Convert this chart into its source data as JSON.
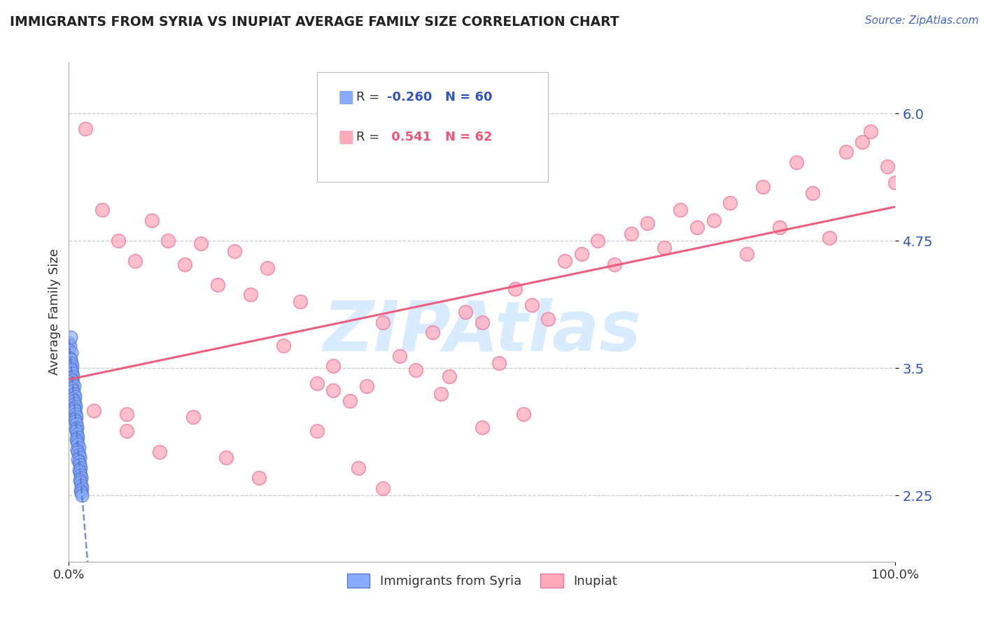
{
  "title": "IMMIGRANTS FROM SYRIA VS INUPIAT AVERAGE FAMILY SIZE CORRELATION CHART",
  "source_text": "Source: ZipAtlas.com",
  "ylabel": "Average Family Size",
  "xlim": [
    0,
    1.0
  ],
  "ylim": [
    1.6,
    6.5
  ],
  "yticks": [
    2.25,
    3.5,
    4.75,
    6.0
  ],
  "xticks": [
    0.0,
    1.0
  ],
  "xticklabels": [
    "0.0%",
    "100.0%"
  ],
  "blue_color": "#88aaff",
  "pink_color": "#ffaabb",
  "blue_edge_color": "#5577cc",
  "pink_edge_color": "#ee7799",
  "blue_line_color": "#5577cc",
  "pink_line_color": "#ee5577",
  "watermark": "ZIPAtlas",
  "watermark_color": "#bbddff",
  "blue_dots": [
    [
      0.0,
      3.75
    ],
    [
      0.001,
      3.72
    ],
    [
      0.002,
      3.8
    ],
    [
      0.0,
      3.68
    ],
    [
      0.003,
      3.65
    ],
    [
      0.001,
      3.6
    ],
    [
      0.002,
      3.58
    ],
    [
      0.003,
      3.55
    ],
    [
      0.004,
      3.52
    ],
    [
      0.002,
      3.5
    ],
    [
      0.003,
      3.48
    ],
    [
      0.004,
      3.45
    ],
    [
      0.005,
      3.42
    ],
    [
      0.003,
      3.4
    ],
    [
      0.004,
      3.38
    ],
    [
      0.005,
      3.35
    ],
    [
      0.006,
      3.32
    ],
    [
      0.004,
      3.3
    ],
    [
      0.005,
      3.28
    ],
    [
      0.006,
      3.25
    ],
    [
      0.007,
      3.22
    ],
    [
      0.005,
      3.2
    ],
    [
      0.006,
      3.18
    ],
    [
      0.007,
      3.15
    ],
    [
      0.008,
      3.12
    ],
    [
      0.006,
      3.1
    ],
    [
      0.007,
      3.08
    ],
    [
      0.008,
      3.05
    ],
    [
      0.009,
      3.02
    ],
    [
      0.007,
      3.0
    ],
    [
      0.008,
      2.98
    ],
    [
      0.009,
      2.95
    ],
    [
      0.01,
      2.92
    ],
    [
      0.008,
      2.9
    ],
    [
      0.009,
      2.88
    ],
    [
      0.01,
      2.85
    ],
    [
      0.011,
      2.82
    ],
    [
      0.009,
      2.8
    ],
    [
      0.01,
      2.78
    ],
    [
      0.011,
      2.75
    ],
    [
      0.012,
      2.72
    ],
    [
      0.01,
      2.7
    ],
    [
      0.011,
      2.68
    ],
    [
      0.012,
      2.65
    ],
    [
      0.013,
      2.62
    ],
    [
      0.011,
      2.6
    ],
    [
      0.012,
      2.58
    ],
    [
      0.013,
      2.55
    ],
    [
      0.014,
      2.52
    ],
    [
      0.012,
      2.5
    ],
    [
      0.013,
      2.48
    ],
    [
      0.014,
      2.45
    ],
    [
      0.015,
      2.42
    ],
    [
      0.013,
      2.4
    ],
    [
      0.014,
      2.38
    ],
    [
      0.015,
      2.35
    ],
    [
      0.016,
      2.32
    ],
    [
      0.014,
      2.3
    ],
    [
      0.015,
      2.28
    ],
    [
      0.016,
      2.25
    ]
  ],
  "pink_dots": [
    [
      0.02,
      5.85
    ],
    [
      0.04,
      5.05
    ],
    [
      0.06,
      4.75
    ],
    [
      0.08,
      4.55
    ],
    [
      0.1,
      4.95
    ],
    [
      0.12,
      4.75
    ],
    [
      0.14,
      4.52
    ],
    [
      0.16,
      4.72
    ],
    [
      0.18,
      4.32
    ],
    [
      0.2,
      4.65
    ],
    [
      0.22,
      4.22
    ],
    [
      0.24,
      4.48
    ],
    [
      0.26,
      3.72
    ],
    [
      0.28,
      4.15
    ],
    [
      0.3,
      3.35
    ],
    [
      0.32,
      3.52
    ],
    [
      0.34,
      3.18
    ],
    [
      0.36,
      3.32
    ],
    [
      0.38,
      3.95
    ],
    [
      0.4,
      3.62
    ],
    [
      0.42,
      3.48
    ],
    [
      0.44,
      3.85
    ],
    [
      0.46,
      3.42
    ],
    [
      0.48,
      4.05
    ],
    [
      0.5,
      3.95
    ],
    [
      0.52,
      3.55
    ],
    [
      0.54,
      4.28
    ],
    [
      0.56,
      4.12
    ],
    [
      0.58,
      3.98
    ],
    [
      0.6,
      4.55
    ],
    [
      0.62,
      4.62
    ],
    [
      0.64,
      4.75
    ],
    [
      0.66,
      4.52
    ],
    [
      0.68,
      4.82
    ],
    [
      0.7,
      4.92
    ],
    [
      0.72,
      4.68
    ],
    [
      0.74,
      5.05
    ],
    [
      0.76,
      4.88
    ],
    [
      0.78,
      4.95
    ],
    [
      0.8,
      5.12
    ],
    [
      0.82,
      4.62
    ],
    [
      0.84,
      5.28
    ],
    [
      0.86,
      4.88
    ],
    [
      0.88,
      5.52
    ],
    [
      0.9,
      5.22
    ],
    [
      0.92,
      4.78
    ],
    [
      0.94,
      5.62
    ],
    [
      0.96,
      5.72
    ],
    [
      0.97,
      5.82
    ],
    [
      0.99,
      5.48
    ],
    [
      1.0,
      5.32
    ],
    [
      0.03,
      3.08
    ],
    [
      0.07,
      2.88
    ],
    [
      0.11,
      2.68
    ],
    [
      0.15,
      3.02
    ],
    [
      0.19,
      2.62
    ],
    [
      0.23,
      2.42
    ],
    [
      0.3,
      2.88
    ],
    [
      0.35,
      2.52
    ],
    [
      0.38,
      2.32
    ],
    [
      0.45,
      3.25
    ],
    [
      0.5,
      2.92
    ],
    [
      0.55,
      3.05
    ],
    [
      0.07,
      3.05
    ],
    [
      0.32,
      3.28
    ]
  ],
  "blue_trend_start_x": 0.0,
  "blue_trend_end_x": 0.016,
  "pink_trend_start_x": 0.0,
  "pink_trend_end_x": 1.0
}
